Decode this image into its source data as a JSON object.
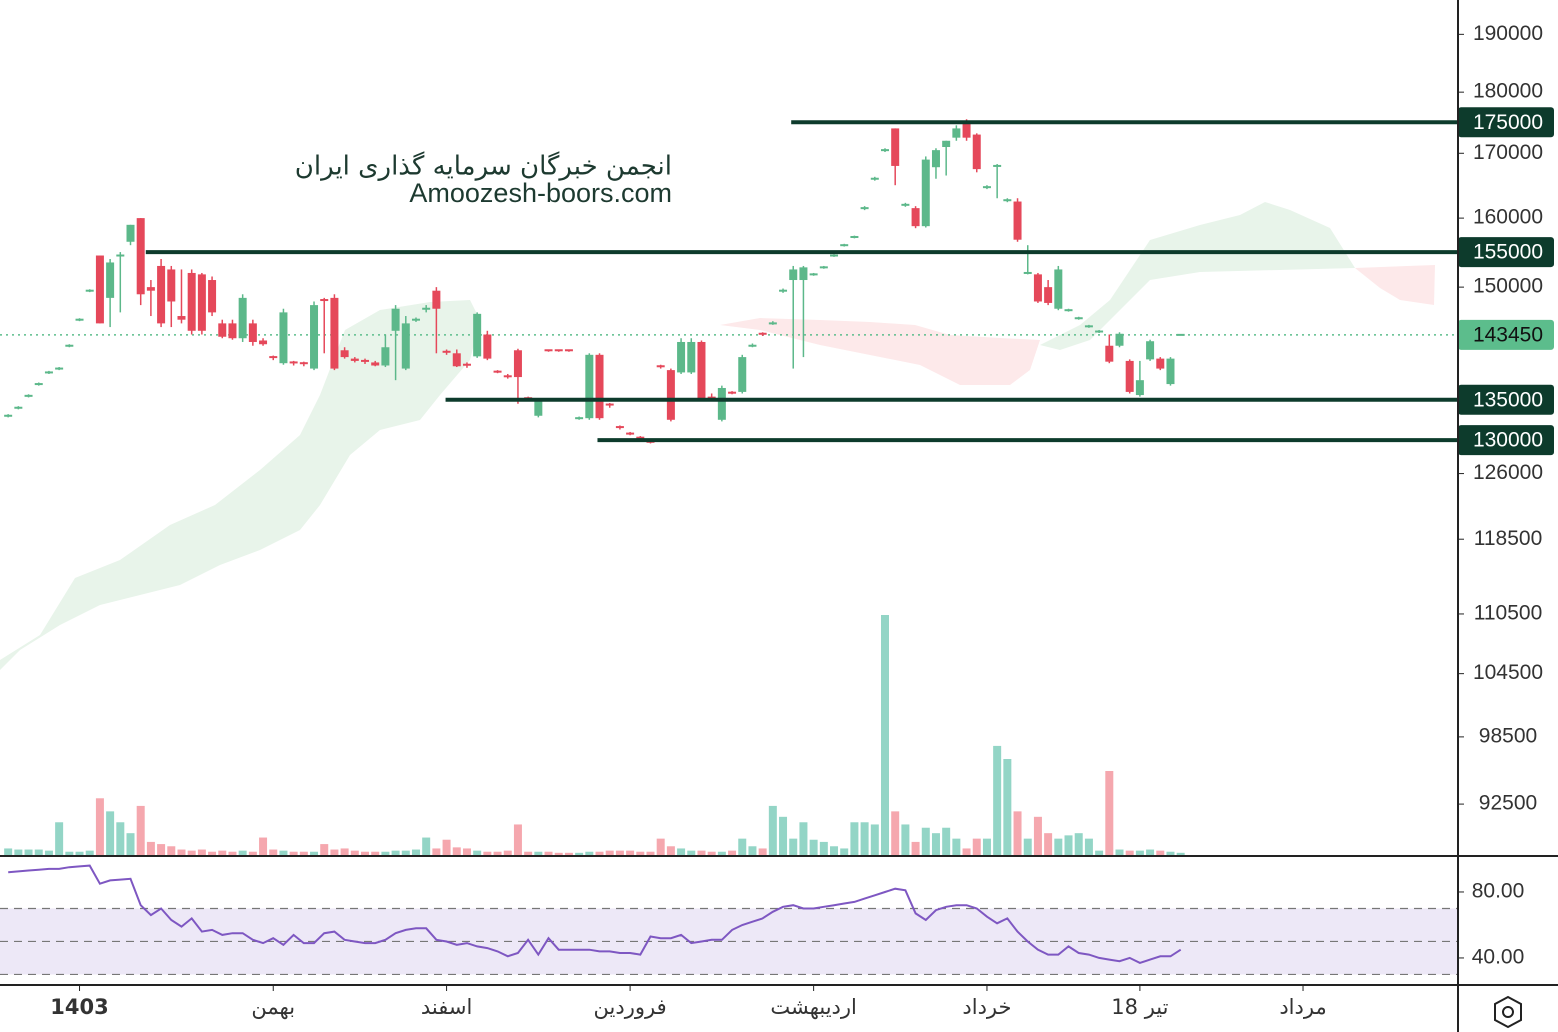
{
  "chart_data": {
    "type": "candlestick",
    "watermark": [
      "انجمن خبرگان سرمایه گذاری ایران",
      "Amoozesh-boors.com"
    ],
    "log_scale": true,
    "ylim": [
      88200,
      196200
    ],
    "yticks": [
      190000,
      180000,
      170000,
      160000,
      150000,
      126000,
      118500,
      110500,
      104500,
      98500,
      92500
    ],
    "xlim": [
      -0.8,
      142.2
    ],
    "xticks": [
      {
        "value": 7,
        "label": "1403"
      },
      {
        "value": 26,
        "label": "بهمن"
      },
      {
        "value": 43,
        "label": "اسفند"
      },
      {
        "value": 61,
        "label": "فروردین"
      },
      {
        "value": 79,
        "label": "اردیبهشت"
      },
      {
        "value": 96,
        "label": "خرداد"
      },
      {
        "value": 111,
        "label": "18 تیر"
      },
      {
        "value": 127,
        "label": "مرداد"
      }
    ],
    "up_color": "#5cb88a",
    "down_color": "#e5485a",
    "up_volume_color": "#93d5c6",
    "down_volume_color": "#f5a7ae",
    "level_color": "#0d3b2c",
    "last_price": 143450,
    "last_price_color": "#5cbd8c",
    "levels": [
      {
        "value": 175000,
        "from": 76.8
      },
      {
        "value": 155000,
        "from": 13.5
      },
      {
        "value": 135000,
        "from": 42.9
      },
      {
        "value": 130000,
        "from": 57.8
      }
    ],
    "candles": [
      [
        133000,
        133200,
        132800,
        133000
      ],
      [
        134000,
        134200,
        133800,
        134000
      ],
      [
        135500,
        135700,
        135300,
        135500
      ],
      [
        137000,
        137200,
        136800,
        137000
      ],
      [
        138500,
        138700,
        138300,
        138500
      ],
      [
        139000,
        139200,
        138800,
        139000
      ],
      [
        142000,
        142200,
        141800,
        142000
      ],
      [
        145500,
        145700,
        145300,
        145500
      ],
      [
        149500,
        149700,
        149300,
        149500
      ],
      [
        154500,
        154500,
        145000,
        145000
      ],
      [
        148500,
        154000,
        144500,
        153500
      ],
      [
        154500,
        155000,
        146500,
        154500
      ],
      [
        156500,
        159000,
        156000,
        159000
      ],
      [
        160000,
        160000,
        147500,
        149000
      ],
      [
        150000,
        151000,
        146000,
        149500
      ],
      [
        153000,
        154000,
        144500,
        145000
      ],
      [
        152500,
        153000,
        144500,
        148000
      ],
      [
        146000,
        152500,
        145000,
        145500
      ],
      [
        152000,
        152500,
        143500,
        144000
      ],
      [
        151800,
        152000,
        143500,
        144000
      ],
      [
        151000,
        151500,
        146000,
        146500
      ],
      [
        145000,
        145500,
        143000,
        143200
      ],
      [
        145000,
        145500,
        142800,
        143000
      ],
      [
        143000,
        149000,
        142500,
        148500
      ],
      [
        145000,
        145500,
        142000,
        142500
      ],
      [
        142700,
        143000,
        142000,
        142200
      ],
      [
        140500,
        140700,
        140100,
        140300
      ],
      [
        139700,
        147000,
        139500,
        146500
      ],
      [
        139800,
        140000,
        139400,
        139600
      ],
      [
        139700,
        139900,
        139300,
        139500
      ],
      [
        139000,
        148000,
        138800,
        147500
      ],
      [
        148200,
        148500,
        141000,
        148000
      ],
      [
        148500,
        149000,
        138800,
        139000
      ],
      [
        141400,
        141800,
        140300,
        140500
      ],
      [
        140300,
        140500,
        139800,
        140000
      ],
      [
        140000,
        140300,
        139600,
        139800
      ],
      [
        139800,
        140000,
        139300,
        139400
      ],
      [
        139400,
        143500,
        139200,
        141800
      ],
      [
        144000,
        147500,
        137500,
        147000
      ],
      [
        139000,
        146000,
        138800,
        145000
      ],
      [
        145500,
        145800,
        145200,
        145500
      ],
      [
        147000,
        147500,
        146500,
        147000
      ],
      [
        149500,
        150000,
        141000,
        147000
      ],
      [
        141200,
        141500,
        140800,
        141000
      ],
      [
        141000,
        141500,
        139200,
        139300
      ],
      [
        139500,
        139800,
        139100,
        139300
      ],
      [
        140600,
        146500,
        140400,
        146300
      ],
      [
        143500,
        144000,
        140100,
        140300
      ],
      [
        138600,
        138800,
        138400,
        138500
      ],
      [
        138000,
        138300,
        137700,
        137900
      ],
      [
        141400,
        141600,
        134500,
        137900
      ],
      [
        135200,
        135400,
        135000,
        135000
      ],
      [
        133000,
        135200,
        132800,
        135000
      ],
      [
        141400,
        141500,
        141200,
        141300
      ],
      [
        141400,
        141500,
        141200,
        141300
      ],
      [
        141400,
        141500,
        141200,
        141300
      ],
      [
        132700,
        132900,
        132500,
        132700
      ],
      [
        132700,
        141000,
        132500,
        140800
      ],
      [
        140800,
        141000,
        132500,
        132700
      ],
      [
        134400,
        134600,
        134000,
        134200
      ],
      [
        131600,
        131800,
        131300,
        131500
      ],
      [
        130800,
        131000,
        130600,
        130700
      ],
      [
        130300,
        130500,
        130000,
        130200
      ],
      [
        129800,
        130000,
        129600,
        129700
      ],
      [
        139300,
        139500,
        139000,
        139200
      ],
      [
        138800,
        139000,
        132300,
        132500
      ],
      [
        138500,
        143000,
        138300,
        142500
      ],
      [
        138500,
        143000,
        138300,
        142500
      ],
      [
        142500,
        142700,
        134900,
        135200
      ],
      [
        135400,
        135800,
        134900,
        135000
      ],
      [
        132500,
        136800,
        132300,
        136500
      ],
      [
        135900,
        136100,
        135700,
        135800
      ],
      [
        136000,
        140800,
        135800,
        140500
      ],
      [
        142000,
        142300,
        141800,
        142000
      ],
      [
        143600,
        143800,
        143300,
        143500
      ],
      [
        145000,
        145300,
        144800,
        145000
      ],
      [
        149500,
        149800,
        149200,
        149500
      ],
      [
        151000,
        153000,
        139000,
        152500
      ],
      [
        151000,
        153000,
        140500,
        152800
      ],
      [
        151800,
        152000,
        151600,
        151800
      ],
      [
        152800,
        153000,
        152600,
        152800
      ],
      [
        154500,
        154700,
        154300,
        154500
      ],
      [
        156000,
        156200,
        155800,
        156000
      ],
      [
        157200,
        157400,
        157000,
        157200
      ],
      [
        161500,
        161800,
        161200,
        161500
      ],
      [
        166000,
        166300,
        165700,
        166000
      ],
      [
        170500,
        170800,
        170200,
        170500
      ],
      [
        174000,
        174000,
        165000,
        168000
      ],
      [
        162000,
        162300,
        161700,
        162000
      ],
      [
        161500,
        161800,
        158500,
        158800
      ],
      [
        158800,
        169500,
        158600,
        169000
      ],
      [
        167800,
        170800,
        166000,
        170500
      ],
      [
        171000,
        172000,
        166500,
        172000
      ],
      [
        172500,
        174500,
        172000,
        174000
      ],
      [
        175000,
        175500,
        172000,
        172500
      ],
      [
        173000,
        173200,
        167000,
        167500
      ],
      [
        164700,
        165000,
        164400,
        164700
      ],
      [
        168000,
        168300,
        163000,
        168000
      ],
      [
        162700,
        163000,
        162400,
        162700
      ],
      [
        162500,
        163000,
        156500,
        156800
      ],
      [
        152000,
        156000,
        151800,
        152000
      ],
      [
        151800,
        152000,
        147800,
        148000
      ],
      [
        150000,
        151000,
        147500,
        147800
      ],
      [
        147000,
        153000,
        146800,
        152500
      ],
      [
        146800,
        147000,
        146600,
        146800
      ],
      [
        145700,
        145900,
        145500,
        145700
      ],
      [
        144600,
        144800,
        144400,
        144600
      ],
      [
        143900,
        144100,
        143700,
        143900
      ],
      [
        142000,
        143500,
        139700,
        139900
      ],
      [
        142000,
        143800,
        141800,
        143600
      ],
      [
        140000,
        140200,
        135800,
        136000
      ],
      [
        135600,
        140000,
        135400,
        137500
      ],
      [
        140200,
        142800,
        140000,
        142600
      ],
      [
        140300,
        140500,
        138800,
        139000
      ],
      [
        137000,
        140500,
        136800,
        140300
      ],
      [
        143450,
        143500,
        143400,
        143450
      ]
    ],
    "volumes": [
      6,
      5,
      5,
      5,
      4,
      30,
      3,
      3,
      4,
      52,
      40,
      30,
      20,
      45,
      12,
      10,
      8,
      5,
      4,
      5,
      3,
      4,
      3,
      4,
      3,
      16,
      5,
      4,
      3,
      3,
      3,
      10,
      5,
      6,
      4,
      3,
      3,
      3,
      4,
      4,
      5,
      16,
      6,
      14,
      7,
      6,
      4,
      3,
      3,
      4,
      28,
      3,
      3,
      3,
      2,
      2,
      2,
      3,
      3,
      4,
      4,
      4,
      3,
      3,
      15,
      8,
      6,
      4,
      4,
      3,
      3,
      4,
      15,
      8,
      6,
      45,
      35,
      15,
      30,
      14,
      12,
      8,
      6,
      30,
      30,
      28,
      220,
      40,
      28,
      12,
      25,
      20,
      25,
      15,
      6,
      15,
      15,
      100,
      88,
      40,
      15,
      35,
      20,
      15,
      18,
      20,
      15,
      4,
      77,
      5,
      4,
      4,
      5,
      4,
      3,
      2
    ],
    "rsi": {
      "color": "#7e57c2",
      "band_color": "#ede8f7",
      "ylim": [
        23.6,
        101.2
      ],
      "yticks": [
        {
          "value": 80,
          "label": "80.00"
        },
        {
          "value": 40,
          "label": "40.00"
        }
      ],
      "levels": [
        70,
        50,
        30
      ],
      "values": [
        92,
        92.5,
        93,
        93.5,
        94,
        94,
        95,
        95.5,
        96,
        85,
        87,
        87.5,
        88,
        72,
        66,
        70,
        63,
        59,
        64,
        56,
        57,
        54,
        55,
        55,
        51,
        49,
        52,
        48,
        54,
        49,
        49,
        55,
        56,
        51,
        50,
        49,
        49,
        51,
        55,
        57,
        58,
        58,
        51,
        50,
        48,
        49,
        47,
        46,
        44,
        41,
        43,
        51,
        42,
        52,
        45,
        45,
        45,
        45,
        44,
        44,
        43,
        43,
        42,
        53,
        52,
        52,
        54,
        49,
        50,
        51,
        51,
        57,
        60,
        62,
        64,
        68,
        71,
        72,
        70,
        70,
        71,
        72,
        73,
        74,
        76,
        78,
        80,
        82,
        81,
        67,
        63,
        69,
        71,
        72,
        72,
        70,
        65,
        61,
        64,
        56,
        50,
        45,
        42,
        42,
        47,
        43,
        42,
        40,
        39,
        38,
        40,
        37,
        39,
        41,
        41,
        45
      ]
    }
  }
}
